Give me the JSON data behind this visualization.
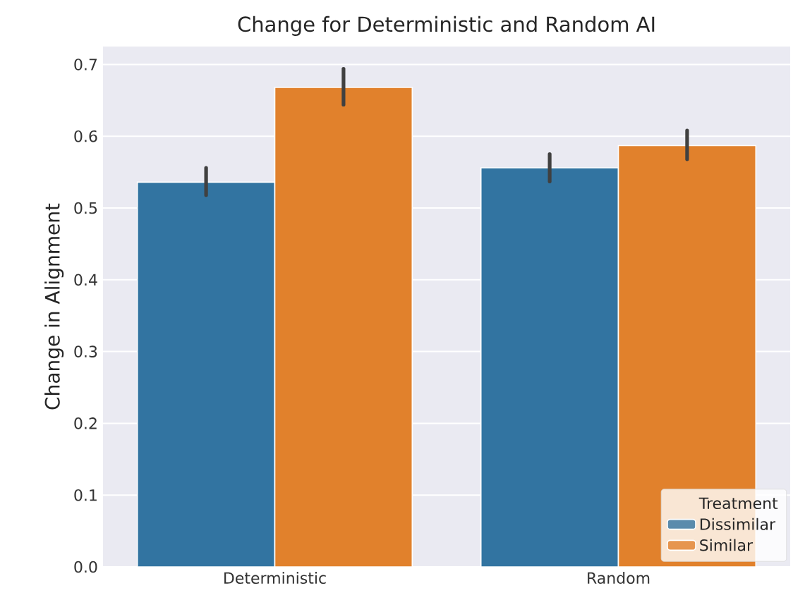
{
  "chart_data": {
    "type": "bar",
    "title": "Change for Deterministic and Random AI",
    "ylabel": "Change in Alignment",
    "legend_title": "Treatment",
    "categories": [
      "Deterministic",
      "Random"
    ],
    "series": [
      {
        "name": "Dissimilar",
        "color": "#3274a1",
        "values": [
          0.536,
          0.556
        ],
        "errors": [
          [
            0.518,
            0.556
          ],
          [
            0.537,
            0.575
          ]
        ]
      },
      {
        "name": "Similar",
        "color": "#e1812c",
        "values": [
          0.668,
          0.587
        ],
        "errors": [
          [
            0.644,
            0.694
          ],
          [
            0.568,
            0.608
          ]
        ]
      }
    ],
    "ylim": [
      0,
      0.725
    ],
    "yticks": [
      {
        "value": 0,
        "label": "0.0"
      },
      0.1,
      0.2,
      0.3,
      0.4,
      0.5,
      0.6,
      0.7
    ],
    "grid": "y",
    "legend": "bottom right"
  }
}
